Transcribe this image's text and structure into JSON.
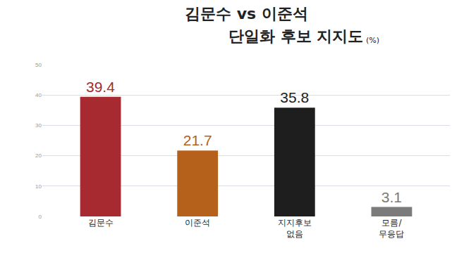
{
  "chart_data": {
    "type": "bar",
    "title": "김문수 vs 이준석",
    "subtitle": "단일화 후보 지지도",
    "y_label": "(%)",
    "categories": [
      "김문수",
      "이준석",
      "지지후보\n없음",
      "모름/\n무응답"
    ],
    "values": [
      39.4,
      21.7,
      35.8,
      3.1
    ],
    "colors": [
      "#a62a2f",
      "#b5611c",
      "#1e1e1e",
      "#7b7b7b"
    ],
    "ylim": [
      0,
      50
    ],
    "yticks": [
      0,
      10,
      20,
      30,
      40,
      50
    ],
    "grid": true,
    "data_labels": true
  }
}
